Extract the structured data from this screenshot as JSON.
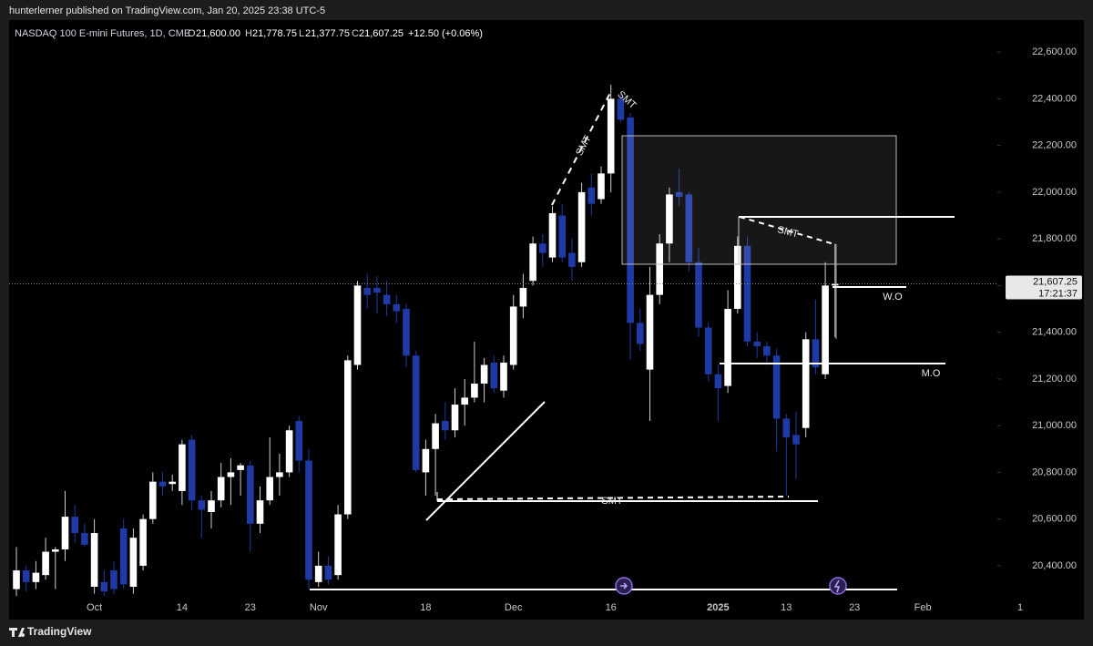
{
  "header": {
    "credit": "hunterlerner published on TradingView.com, Jan 20, 2025 23:38 UTC-5",
    "symbol": "NASDAQ 100 E-mini Futures, 1D, CME",
    "open_label": "O",
    "open": "21,600.00",
    "high_label": "H",
    "high": "21,778.75",
    "low_label": "L",
    "low": "21,377.75",
    "close_label": "C",
    "close": "21,607.25",
    "change": "+12.50 (+0.06%)"
  },
  "chart_data": {
    "type": "candlestick",
    "categories": [
      null,
      null,
      null,
      null,
      null,
      null,
      null,
      null,
      "Oct",
      null,
      null,
      null,
      null,
      null,
      null,
      null,
      null,
      "14",
      null,
      null,
      null,
      null,
      null,
      null,
      "23",
      null,
      null,
      null,
      null,
      null,
      null,
      "Nov",
      null,
      null,
      null,
      null,
      null,
      null,
      null,
      null,
      null,
      null,
      "18",
      null,
      null,
      null,
      null,
      null,
      null,
      null,
      null,
      "Dec",
      null,
      null,
      null,
      null,
      null,
      null,
      null,
      null,
      null,
      "16",
      null,
      null,
      null,
      null,
      null,
      null,
      null,
      null,
      null,
      null,
      "2025",
      null,
      null,
      null,
      null,
      null,
      null,
      "13",
      null,
      null,
      null,
      null,
      null,
      null,
      "23",
      null,
      null,
      null,
      null,
      null,
      null,
      "Feb",
      null,
      null,
      null,
      null,
      null,
      null,
      null,
      null,
      null,
      "1"
    ],
    "open": [
      20300,
      20380,
      20330,
      20360,
      20460,
      20470,
      20610,
      20540,
      20310,
      20330,
      20380,
      20560,
      20310,
      20400,
      20600,
      20760,
      20750,
      20720,
      20940,
      20680,
      20630,
      20680,
      20780,
      20810,
      20830,
      20580,
      20680,
      20780,
      20800,
      21020,
      20850,
      20330,
      20400,
      20360,
      20620,
      21260,
      21590,
      21590,
      21560,
      21520,
      21500,
      21300,
      20800,
      20900,
      21020,
      20980,
      21090,
      21120,
      21180,
      21270,
      21150,
      21260,
      21510,
      21620,
      21780,
      21720,
      21900,
      21740,
      21700,
      22020,
      21970,
      22080,
      22400,
      22320,
      21440,
      21240,
      21560,
      21780,
      22000,
      21990,
      21700,
      21420,
      21220,
      21170,
      21500,
      21770,
      21360,
      21340,
      21300,
      21030,
      20960,
      20990,
      21370,
      21220,
      21600,
      null,
      null,
      null,
      null,
      null,
      null,
      null,
      null,
      null,
      null,
      null,
      null,
      null,
      null,
      null,
      null,
      null,
      null,
      null
    ],
    "high": [
      20480,
      20400,
      20420,
      20520,
      20480,
      20720,
      20660,
      20580,
      20600,
      20380,
      20420,
      20600,
      20560,
      20620,
      20800,
      20800,
      20790,
      20940,
      20960,
      20700,
      20720,
      20840,
      20860,
      20840,
      20850,
      20740,
      20950,
      20880,
      21000,
      21040,
      20900,
      20460,
      20440,
      20660,
      21300,
      21620,
      21650,
      21640,
      21620,
      21560,
      21520,
      21320,
      20940,
      21050,
      21100,
      21160,
      21200,
      21360,
      21290,
      21300,
      21300,
      21560,
      21650,
      21810,
      21820,
      21940,
      21950,
      21800,
      22040,
      22080,
      22110,
      22460,
      22420,
      22340,
      21500,
      21680,
      21820,
      22020,
      22100,
      22000,
      21760,
      21440,
      21260,
      21580,
      21810,
      21810,
      21400,
      21360,
      21330,
      21050,
      21060,
      21400,
      21540,
      21700,
      21778.75,
      null,
      null,
      null,
      null,
      null,
      null,
      null,
      null,
      null,
      null,
      null,
      null,
      null,
      null,
      null,
      null,
      null,
      null,
      null
    ],
    "low": [
      20270,
      20290,
      20300,
      20340,
      20300,
      20420,
      20500,
      20480,
      20280,
      20270,
      20280,
      20300,
      20280,
      20380,
      20580,
      20700,
      20720,
      20660,
      20640,
      20520,
      20560,
      20650,
      20660,
      20700,
      20460,
      20540,
      20660,
      20700,
      20780,
      20800,
      20300,
      20310,
      20320,
      20340,
      20600,
      21240,
      21500,
      21480,
      21470,
      21440,
      21250,
      20800,
      20700,
      20700,
      20940,
      20950,
      21000,
      21100,
      21100,
      21140,
      21120,
      21240,
      21460,
      21600,
      21680,
      21700,
      21700,
      21620,
      21680,
      21900,
      21950,
      22000,
      22300,
      21280,
      21320,
      21020,
      21520,
      21700,
      21940,
      21660,
      21380,
      21190,
      21020,
      21140,
      21480,
      21340,
      21290,
      21260,
      20890,
      20700,
      20770,
      20950,
      21220,
      21200,
      21377.75,
      null,
      null,
      null,
      null,
      null,
      null,
      null,
      null,
      null,
      null,
      null,
      null,
      null,
      null,
      null,
      null,
      null,
      null,
      null
    ],
    "close": [
      20380,
      20330,
      20370,
      20460,
      20470,
      20610,
      20540,
      20490,
      20540,
      20290,
      20300,
      20320,
      20520,
      20600,
      20760,
      20740,
      20760,
      20920,
      20680,
      20640,
      20680,
      20780,
      20800,
      20830,
      20580,
      20680,
      20780,
      20800,
      20980,
      20850,
      20340,
      20400,
      20340,
      20620,
      21280,
      21600,
      21560,
      21570,
      21520,
      21490,
      21300,
      20810,
      20900,
      21010,
      20980,
      21090,
      21120,
      21180,
      21260,
      21160,
      21270,
      21510,
      21590,
      21780,
      21740,
      21910,
      21720,
      21680,
      22000,
      21950,
      22080,
      22400,
      22310,
      21440,
      21350,
      21560,
      21780,
      21990,
      21980,
      21700,
      21420,
      21220,
      21160,
      21500,
      21770,
      21360,
      21340,
      21300,
      21030,
      20950,
      20920,
      21370,
      21250,
      21600,
      21607.25,
      null,
      null,
      null,
      null,
      null,
      null,
      null,
      null,
      null,
      null,
      null,
      null,
      null,
      null,
      null,
      null,
      null,
      null,
      null
    ],
    "up_color": "#ffffff",
    "down_color": "#1f3aa6",
    "ylim": [
      20267,
      22737
    ],
    "yticks": [
      {
        "value": 20400,
        "label": "20,400.00"
      },
      {
        "value": 20600,
        "label": "20,600.00"
      },
      {
        "value": 20800,
        "label": "20,800.00"
      },
      {
        "value": 21000,
        "label": "21,000.00"
      },
      {
        "value": 21200,
        "label": "21,200.00"
      },
      {
        "value": 21400,
        "label": "21,400.00"
      },
      {
        "value": 21600,
        "label": "21,600.00"
      },
      {
        "value": 21800,
        "label": "21,800.00"
      },
      {
        "value": 22000,
        "label": "22,000.00"
      },
      {
        "value": 22200,
        "label": "22,200.00"
      },
      {
        "value": 22400,
        "label": "22,400.00"
      },
      {
        "value": 22600,
        "label": "22,600.00"
      }
    ],
    "last_price_label": "21,607.25",
    "countdown": "17:21:37",
    "annotations": [
      "SMT",
      "SMT",
      "SMT",
      "W.O",
      "M.O"
    ]
  },
  "footer": {
    "brand": "TradingView"
  }
}
